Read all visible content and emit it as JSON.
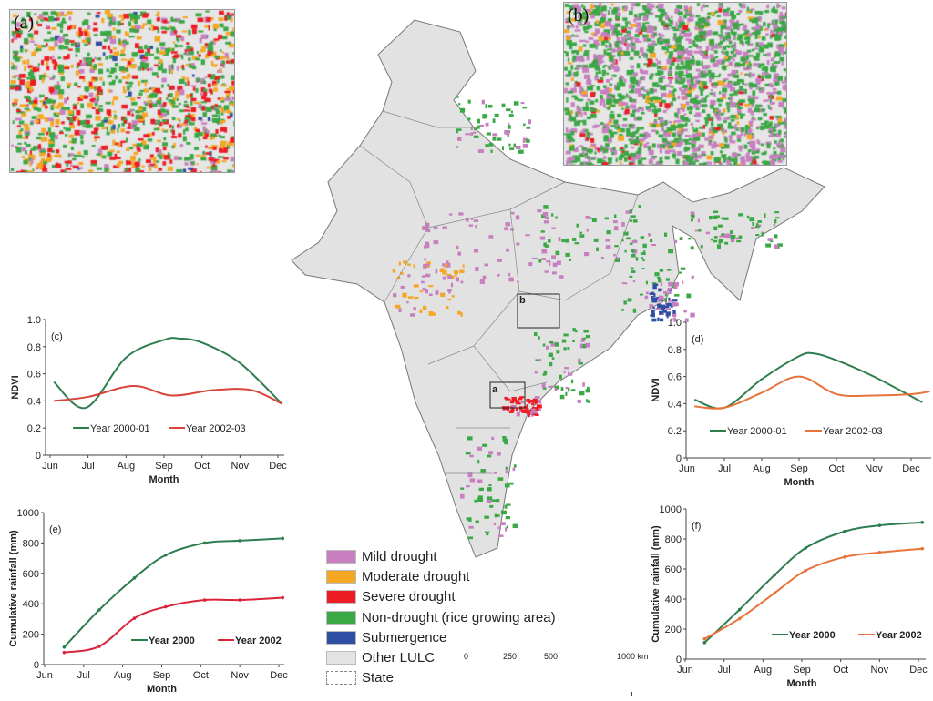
{
  "map": {
    "inset_a_label": "(a)",
    "inset_b_label": "(b)",
    "box_a_label": "a",
    "box_b_label": "b",
    "legend": [
      {
        "label": "Mild drought",
        "color": "#c77fc0"
      },
      {
        "label": "Moderate drought",
        "color": "#f5a623"
      },
      {
        "label": "Severe drought",
        "color": "#ee1c24"
      },
      {
        "label": "Non-drought (rice growing area)",
        "color": "#3aa845"
      },
      {
        "label": "Submergence",
        "color": "#2e4fa3"
      },
      {
        "label": "Other LULC",
        "color": "#e3e3e3"
      },
      {
        "label": "State",
        "color": "#ffffff"
      }
    ],
    "scale_ticks": [
      "0",
      "250",
      "500",
      "1000 km"
    ]
  },
  "chart_data": [
    {
      "type": "line",
      "panel": "(c)",
      "xlabel": "Month",
      "ylabel": "NDVI",
      "categories": [
        "Jun",
        "Jul",
        "Aug",
        "Sep",
        "Oct",
        "Nov",
        "Dec"
      ],
      "ylim": [
        0,
        1.0
      ],
      "yticks": [
        "0",
        "0.2",
        "0.4",
        "0.6",
        "0.8",
        "1.0"
      ],
      "series": [
        {
          "name": "Year 2000-01",
          "color": "#2e7d4f",
          "x": [
            0.1,
            0.95,
            2,
            3,
            3.4,
            4,
            5,
            6.1
          ],
          "values": [
            0.54,
            0.35,
            0.72,
            0.85,
            0.86,
            0.83,
            0.68,
            0.38
          ]
        },
        {
          "name": "Year 2002-03",
          "color": "#d9443a",
          "x": [
            0.1,
            1,
            2.2,
            3.2,
            4.3,
            5.3,
            6.1
          ],
          "values": [
            0.4,
            0.43,
            0.51,
            0.44,
            0.48,
            0.48,
            0.38
          ]
        }
      ]
    },
    {
      "type": "line",
      "panel": "(d)",
      "xlabel": "Month",
      "ylabel": "NDVI",
      "categories": [
        "Jun",
        "Jul",
        "Aug",
        "Sep",
        "Oct",
        "Nov",
        "Dec"
      ],
      "ylim": [
        0,
        1.0
      ],
      "yticks": [
        "0",
        "0.2",
        "0.4",
        "0.6",
        "0.8",
        "1.0"
      ],
      "series": [
        {
          "name": "Year 2000-01",
          "color": "#2e7d4f",
          "x": [
            0.2,
            1,
            2,
            3,
            3.4,
            4,
            5,
            6.3
          ],
          "values": [
            0.43,
            0.37,
            0.58,
            0.75,
            0.77,
            0.72,
            0.6,
            0.41
          ]
        },
        {
          "name": "Year 2002-03",
          "color": "#e8733a",
          "x": [
            0.2,
            1,
            2,
            3,
            4,
            5,
            6,
            6.5
          ],
          "values": [
            0.38,
            0.37,
            0.48,
            0.6,
            0.47,
            0.46,
            0.47,
            0.49
          ]
        }
      ]
    },
    {
      "type": "line",
      "panel": "(e)",
      "xlabel": "Month",
      "ylabel": "Cumulative rainfall (mm)",
      "categories": [
        "Jun",
        "Jul",
        "Aug",
        "Sep",
        "Oct",
        "Nov",
        "Dec"
      ],
      "ylim": [
        0,
        1000
      ],
      "yticks": [
        "0",
        "200",
        "400",
        "600",
        "800",
        "1000"
      ],
      "series": [
        {
          "name": "Year 2000",
          "color": "#2e7d4f",
          "x": [
            0.5,
            1.4,
            2.3,
            3.1,
            4.1,
            5,
            6.1
          ],
          "values": [
            115,
            360,
            570,
            720,
            800,
            815,
            830
          ]
        },
        {
          "name": "Year 2002",
          "color": "#d9243a",
          "x": [
            0.5,
            1.4,
            2.3,
            3.1,
            4.1,
            5,
            6.1
          ],
          "values": [
            80,
            120,
            305,
            380,
            425,
            425,
            440
          ]
        }
      ]
    },
    {
      "type": "line",
      "panel": "(f)",
      "xlabel": "Month",
      "ylabel": "Cumulative rainfall (mm)",
      "categories": [
        "Jun",
        "Jul",
        "Aug",
        "Sep",
        "Oct",
        "Nov",
        "Dec"
      ],
      "ylim": [
        0,
        1000
      ],
      "yticks": [
        "0",
        "200",
        "400",
        "600",
        "800",
        "1000"
      ],
      "series": [
        {
          "name": "Year 2000",
          "color": "#2e7d4f",
          "x": [
            0.5,
            1.4,
            2.3,
            3.1,
            4.1,
            5,
            6.1
          ],
          "values": [
            110,
            330,
            560,
            740,
            850,
            890,
            910
          ]
        },
        {
          "name": "Year 2002",
          "color": "#e8733a",
          "x": [
            0.5,
            1.4,
            2.3,
            3.1,
            4.1,
            5,
            6.1
          ],
          "values": [
            135,
            270,
            440,
            590,
            680,
            710,
            735
          ]
        }
      ]
    }
  ]
}
